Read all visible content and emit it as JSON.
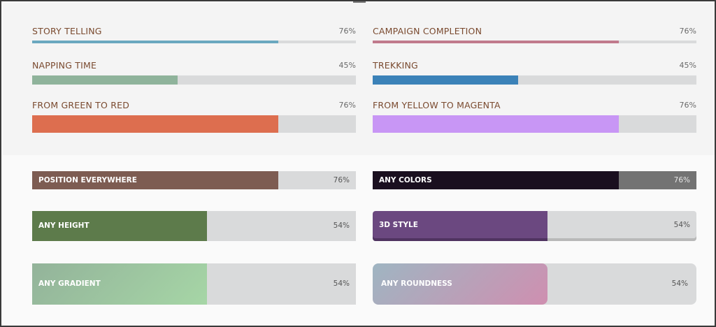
{
  "simple_bars": [
    {
      "label": "STORY TELLING",
      "value_text": "76%",
      "percent": 76,
      "color": "#6aa8bf"
    },
    {
      "label": "CAMPAIGN COMPLETION",
      "value_text": "76%",
      "percent": 76,
      "color": "#c07a8c"
    },
    {
      "label": "NAPPING TIME",
      "value_text": "45%",
      "percent": 45,
      "color": "#8fb39b"
    },
    {
      "label": "TREKKING",
      "value_text": "45%",
      "percent": 45,
      "color": "#3b82b8"
    },
    {
      "label": "FROM GREEN TO RED",
      "value_text": "76%",
      "percent": 76,
      "color": "#dd6e4f"
    },
    {
      "label": "FROM YELLOW TO MAGENTA",
      "value_text": "76%",
      "percent": 76,
      "color": "#c896f5"
    }
  ],
  "styled_bars": [
    {
      "label": "POSITION EVERYWHERE",
      "value_text": "76%",
      "percent": 76,
      "color": "#7d5c52",
      "track": "#d9dadb"
    },
    {
      "label": "ANY COLORS",
      "value_text": "76%",
      "percent": 76,
      "color": "#1a0f1f",
      "track": "#737373"
    },
    {
      "label": "ANY HEIGHT",
      "value_text": "54%",
      "percent": 54,
      "color": "#5d7b4b",
      "track": "#d9dadb"
    },
    {
      "label": "3D STYLE",
      "value_text": "54%",
      "percent": 54,
      "color": "#6b4880",
      "track": "#d9dadb"
    },
    {
      "label": "ANY GRADIENT",
      "value_text": "54%",
      "percent": 54,
      "color_from": "#93b39a",
      "color_to": "#a6d6a6",
      "track": "#d9dadb"
    },
    {
      "label": "ANY ROUNDNESS",
      "value_text": "54%",
      "percent": 54,
      "color_from": "#9fb5c2",
      "color_to": "#cf8fb0",
      "track": "#d9dadb"
    }
  ]
}
